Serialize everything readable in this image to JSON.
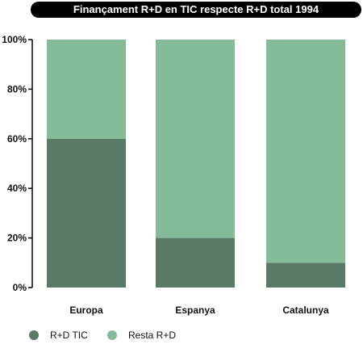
{
  "chart_data": {
    "type": "bar",
    "stacked": true,
    "title": "Finançament R+D en TIC respecte R+D total 1994",
    "categories": [
      "Europa",
      "Espanya",
      "Catalunya"
    ],
    "series": [
      {
        "name": "R+D TIC",
        "values": [
          60,
          20,
          10
        ],
        "color": "#587a66"
      },
      {
        "name": "Resta R+D",
        "values": [
          40,
          80,
          90
        ],
        "color": "#84bb99"
      }
    ],
    "yticks": [
      "0%",
      "20%",
      "40%",
      "60%",
      "80%",
      "100%"
    ],
    "ylim": [
      0,
      100
    ],
    "grid": false,
    "legend_position": "bottom-left"
  }
}
